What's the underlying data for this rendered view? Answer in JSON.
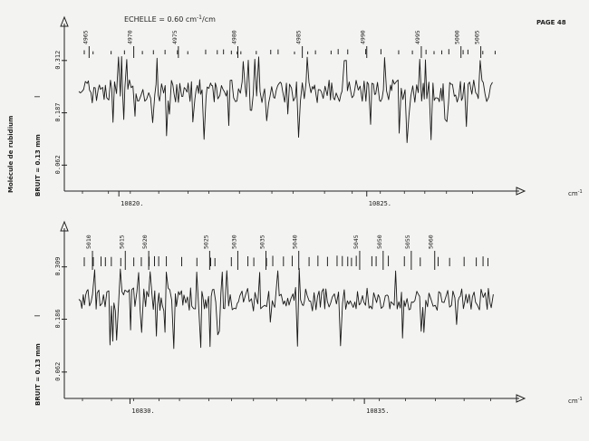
{
  "page": {
    "label": "PAGE 48"
  },
  "scale_note": {
    "prefix": "ECHELLE = 0.60 cm",
    "sup": "-1",
    "suffix": "/cm"
  },
  "chart_data": [
    {
      "type": "line",
      "title": "",
      "ylabel_vertical": "Molécule de rubidium",
      "noise_label": "BRUIT = 0.13 mm",
      "i_marker": "I",
      "unit_label": "cm",
      "unit_sup": "-1",
      "xlim": [
        10818.9,
        10827.6
      ],
      "x_ticks": [
        10820,
        10825
      ],
      "x_tick_labels": [
        "10820.",
        "10825."
      ],
      "y_ticks": [
        0.312,
        0.187,
        0.062
      ],
      "y_tick_labels": [
        "0.312",
        "0.187",
        "0.062"
      ],
      "ylim": [
        0.0,
        0.37
      ],
      "line_numbers": [
        "4965",
        "4970",
        "4975",
        "4980",
        "4985",
        "4990",
        "4995",
        "5000",
        "5005"
      ],
      "line_number_x": [
        10819.4,
        10820.3,
        10821.2,
        10822.4,
        10823.7,
        10825.0,
        10826.1,
        10826.9,
        10827.3
      ],
      "series": [
        {
          "baseline": 0.3,
          "noise": 0.035
        }
      ],
      "grid": false
    },
    {
      "type": "line",
      "title": "",
      "ylabel_vertical": "",
      "noise_label": "BRUIT = 0.13 mm",
      "i_marker": "I",
      "unit_label": "cm",
      "unit_sup": "-1",
      "xlim": [
        10828.6,
        10837.8
      ],
      "x_ticks": [
        10830,
        10835
      ],
      "x_tick_labels": [
        "10830.",
        "10835."
      ],
      "y_ticks": [
        0.309,
        0.186,
        0.062
      ],
      "y_tick_labels": [
        "0.309",
        "0.186",
        "0.062"
      ],
      "ylim": [
        0.0,
        0.37
      ],
      "line_numbers": [
        "5010",
        "5015",
        "5020",
        "5025",
        "5030",
        "5035",
        "5040",
        "5045",
        "5050",
        "5055",
        "5060"
      ],
      "line_number_x": [
        10829.2,
        10829.9,
        10830.4,
        10831.7,
        10832.3,
        10832.9,
        10833.6,
        10834.9,
        10835.4,
        10836.0,
        10836.5
      ],
      "series": [
        {
          "baseline": 0.3,
          "noise": 0.035
        }
      ],
      "grid": false
    }
  ]
}
